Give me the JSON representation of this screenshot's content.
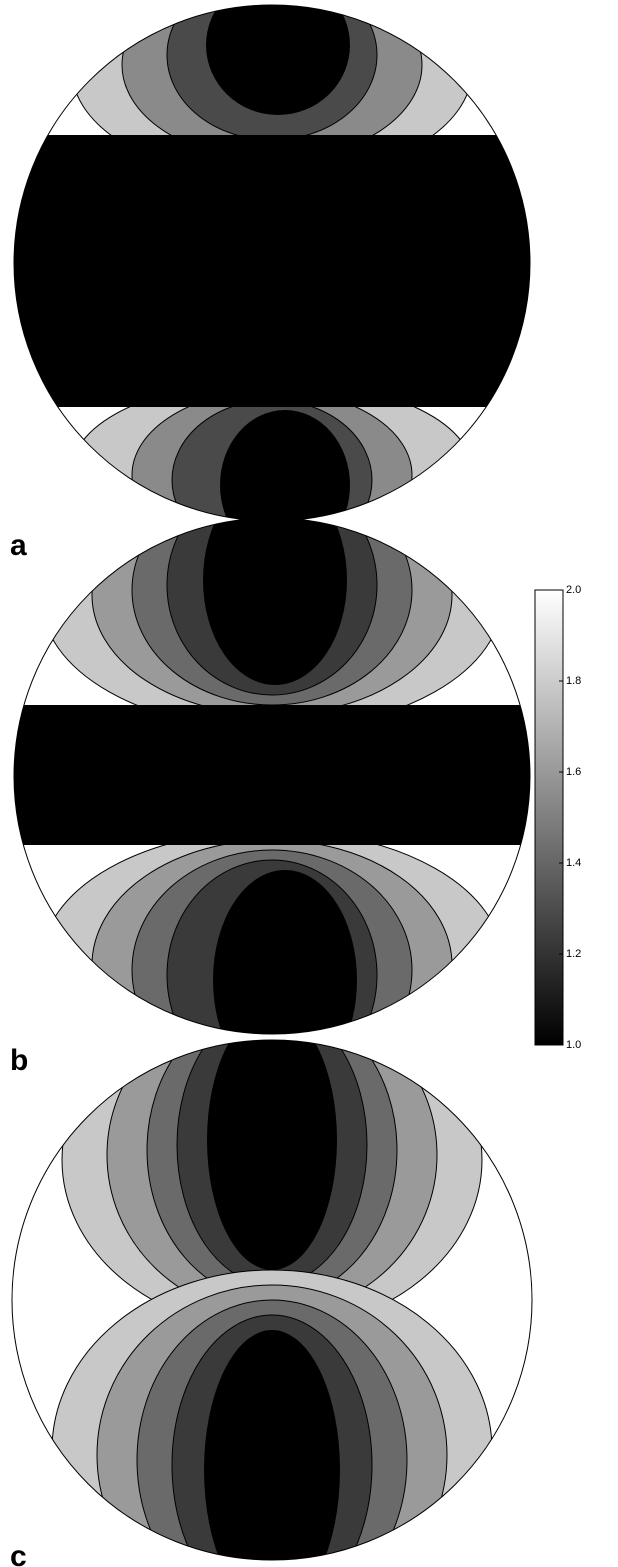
{
  "chart_data": {
    "type": "contour",
    "panels": [
      "a",
      "b",
      "c"
    ],
    "clim": [
      1.0,
      2.0
    ],
    "cticks": [
      {
        "value": 1.0,
        "label": "1.0"
      },
      1.2,
      1.4,
      1.6,
      1.8,
      {
        "value": 2.0,
        "label": "2.0"
      }
    ]
  }
}
